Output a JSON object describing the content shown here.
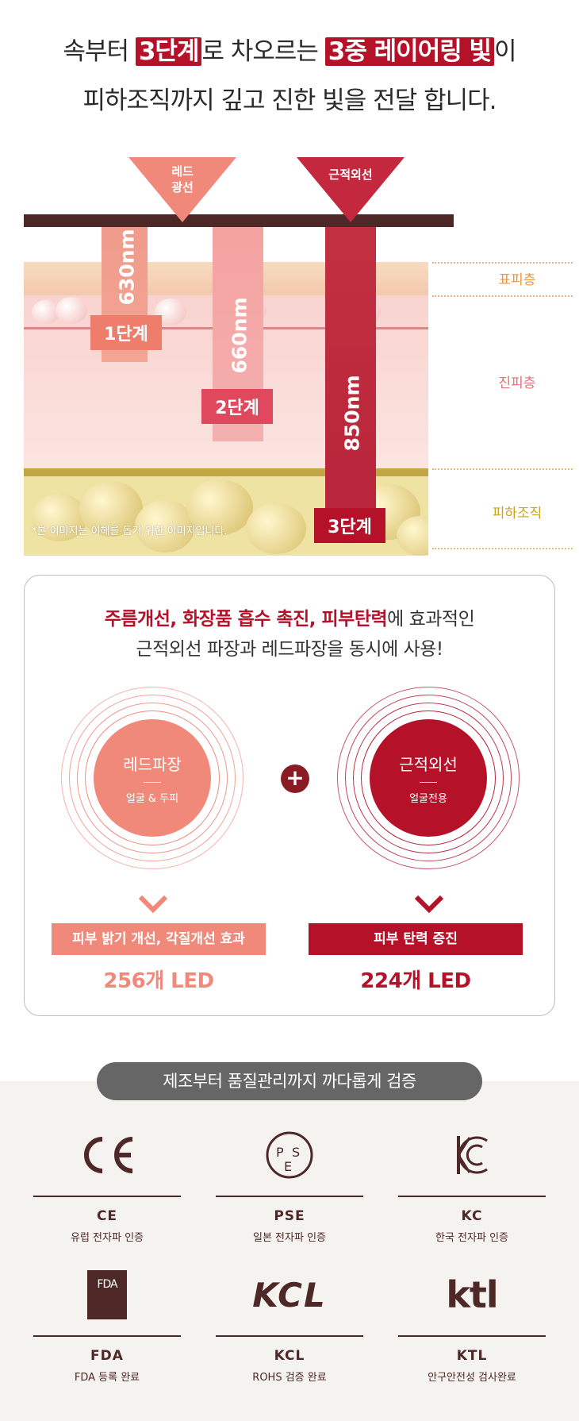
{
  "headline": {
    "line1_a": "속부터 ",
    "line1_hl1": "3단계",
    "line1_b": "로 차오르는 ",
    "line1_hl2": "3중 레이어링 빛",
    "line1_c": "이",
    "line2": "피하조직까지 깊고 진한 빛을 전달 합니다."
  },
  "diagram": {
    "red_light_label": "레드\n광선",
    "nir_label": "근적외선",
    "beams": [
      {
        "wavelength": "630nm",
        "step": "1단계"
      },
      {
        "wavelength": "660nm",
        "step": "2단계"
      },
      {
        "wavelength": "850nm",
        "step": "3단계"
      }
    ],
    "layers": {
      "epidermis": "표피층",
      "dermis": "진피층",
      "subcutaneous": "피하조직"
    },
    "note": "*본 이미지는 이해를 돕기 위한 이미지입니다.",
    "colors": {
      "layer_label_epi": "#e8953f",
      "layer_label_dermis": "#e4707a",
      "layer_label_sub": "#c8a321"
    }
  },
  "effects": {
    "title_em": "주름개선, 화장품 흡수 촉진, 피부탄력",
    "title_rest": "에 효과적인",
    "title_line2": "근적외선 파장과 레드파장을 동시에 사용!",
    "plus": "+",
    "red": {
      "name": "레드파장",
      "sub": "얼굴 & 두피",
      "effect": "피부 밝기 개선, 각질개선 효과",
      "led": "256개 LED",
      "color": "#f0897a"
    },
    "nir": {
      "name": "근적외선",
      "sub": "얼굴전용",
      "effect": "피부 탄력 증진",
      "led": "224개 LED",
      "color": "#b5122a"
    }
  },
  "certs": {
    "title": "제조부터 품질관리까지 까다롭게 검증",
    "items": [
      {
        "logo": "CE",
        "name": "CE",
        "desc": "유럽 전자파 인증"
      },
      {
        "logo": "PSE",
        "name": "PSE",
        "desc": "일본 전자파 인증"
      },
      {
        "logo": "KC",
        "name": "KC",
        "desc": "한국 전자파 인증"
      },
      {
        "logo": "FDA",
        "name": "FDA",
        "desc": "FDA 등록 완료"
      },
      {
        "logo": "KCL",
        "name": "KCL",
        "desc": "ROHS 검증 완료"
      },
      {
        "logo": "ktl",
        "name": "KTL",
        "desc": "안구안전성 검사완료"
      }
    ]
  }
}
